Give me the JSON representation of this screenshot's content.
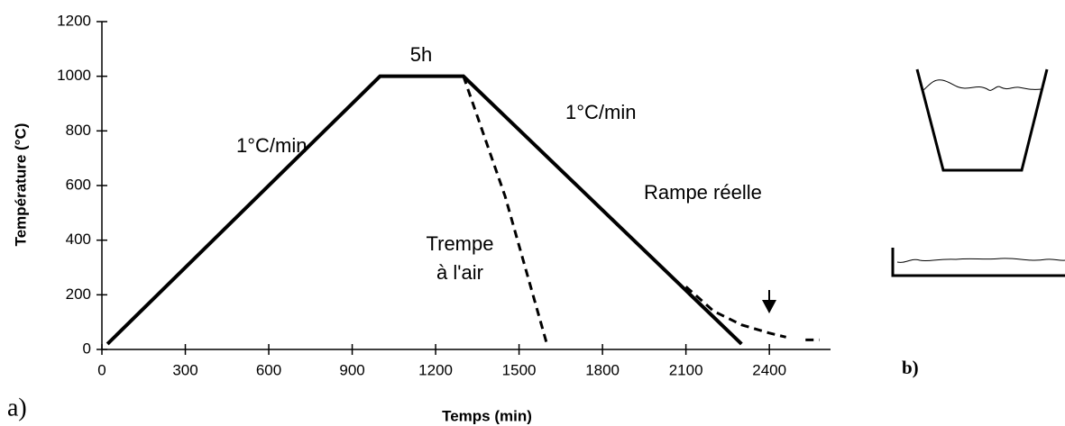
{
  "chart_data": {
    "type": "line",
    "x_label": "Temps (min)",
    "y_label": "Température (°C)",
    "xlim": [
      0,
      2620
    ],
    "ylim": [
      0,
      1200
    ],
    "xticks": [
      0,
      300,
      600,
      900,
      1200,
      1500,
      1800,
      2100,
      2400
    ],
    "yticks": [
      0,
      200,
      400,
      600,
      800,
      1000,
      1200
    ],
    "series": [
      {
        "color": "#000000",
        "dashed": false,
        "x": [
          20,
          1000,
          1300,
          2300
        ],
        "values": [
          20,
          1000,
          1000,
          20
        ]
      },
      {
        "color": "#000000",
        "dashed": true,
        "x": [
          1300,
          1450,
          1600
        ],
        "values": [
          1000,
          560,
          20
        ]
      },
      {
        "color": "#000000",
        "dashed": true,
        "x": [
          2100,
          2200,
          2300,
          2400,
          2460,
          2500,
          2530,
          2580
        ],
        "values": [
          230,
          140,
          90,
          60,
          45,
          null,
          35,
          35
        ]
      }
    ],
    "annotations": [
      "5h",
      "1°C/min",
      "1°C/min",
      "Rampe réelle",
      "Trempe",
      "à l'air"
    ],
    "panel_labels": [
      "a)",
      "b)"
    ]
  }
}
